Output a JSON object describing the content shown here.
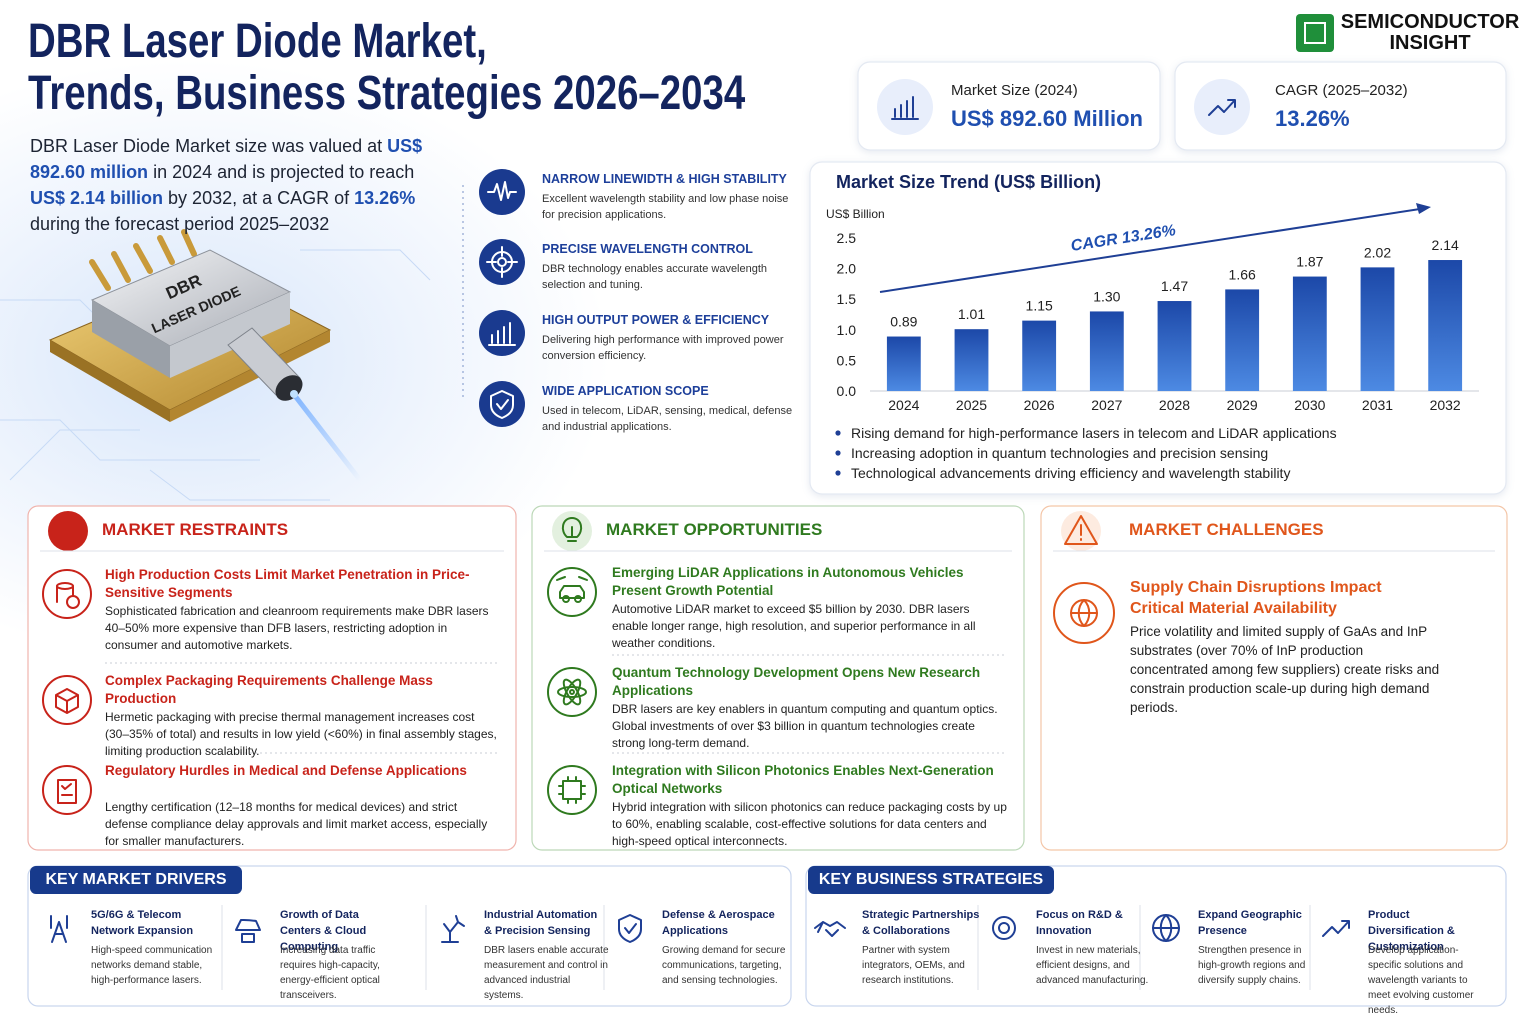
{
  "header": {
    "title_line1": "DBR Laser Diode Market,",
    "title_line2": "Trends, Business Strategies 2026–2034",
    "brand_line1": "SEMICONDUCTOR",
    "brand_line2": "INSIGHT"
  },
  "intro": [
    "DBR Laser Diode Market size was valued at ",
    "US$ 892.60 million",
    " in 2024 and is projected to reach ",
    "US$ 2.14 billion",
    " by 2032, at a CAGR of ",
    "13.26%",
    " during the forecast period 2025–2032"
  ],
  "device_label": [
    "DBR",
    "LASER DIODE"
  ],
  "features": [
    {
      "title": "NARROW LINEWIDTH & HIGH STABILITY",
      "text": "Excellent wavelength stability and low phase noise for precision applications."
    },
    {
      "title": "PRECISE WAVELENGTH CONTROL",
      "text": "DBR technology enables accurate wavelength selection and tuning."
    },
    {
      "title": "HIGH OUTPUT POWER & EFFICIENCY",
      "text": "Delivering high performance with improved power conversion efficiency."
    },
    {
      "title": "WIDE APPLICATION SCOPE",
      "text": "Used in telecom, LiDAR, sensing, medical, defense and industrial applications."
    }
  ],
  "kpis": [
    {
      "label": "Market Size (2024)",
      "value": "US$ 892.60 Million"
    },
    {
      "label": "CAGR (2025–2032)",
      "value": "13.26%"
    }
  ],
  "chart_data": {
    "type": "bar",
    "title": "Market Size Trend (US$ Billion)",
    "y_label": "US$ Billion",
    "categories": [
      "2024",
      "2025",
      "2026",
      "2027",
      "2028",
      "2029",
      "2030",
      "2031",
      "2032"
    ],
    "values": [
      0.89,
      1.01,
      1.15,
      1.3,
      1.47,
      1.66,
      1.87,
      2.02,
      2.14
    ],
    "value_labels": [
      "0.89",
      "1.01",
      "1.15",
      "1.30",
      "1.47",
      "1.66",
      "1.87",
      "2.02",
      "2.14"
    ],
    "color": "#1f4fb0",
    "ylim": [
      0,
      2.5
    ],
    "yticks": [
      {
        "value": 0,
        "label": "0.0"
      },
      0.5,
      {
        "value": 1,
        "label": "1.0"
      },
      1.5,
      {
        "value": 2,
        "label": "2.0"
      },
      2.5
    ],
    "grid": false,
    "annotation": "CAGR 13.26%"
  },
  "chart_bullets": [
    "Rising demand for high-performance lasers in telecom and LiDAR applications",
    "Increasing adoption in quantum technologies and precision sensing",
    "Technological advancements driving efficiency and wavelength stability"
  ],
  "restraints": {
    "title": "MARKET RESTRAINTS",
    "items": [
      {
        "title": "High Production Costs Limit Market Penetration in Price-Sensitive Segments",
        "text": "Sophisticated fabrication and cleanroom requirements make DBR lasers 40–50% more expensive than DFB lasers, restricting adoption in consumer and automotive markets."
      },
      {
        "title": "Complex Packaging Requirements Challenge Mass Production",
        "text": "Hermetic packaging with precise thermal management increases cost (30–35% of total) and results in low yield (<60%) in final assembly stages, limiting production scalability."
      },
      {
        "title": "Regulatory Hurdles in Medical and Defense Applications",
        "text": "Lengthy certification (12–18 months for medical devices) and strict defense compliance delay approvals and limit market access, especially for smaller manufacturers."
      }
    ]
  },
  "opportunities": {
    "title": "MARKET OPPORTUNITIES",
    "items": [
      {
        "title": "Emerging LiDAR Applications in Autonomous Vehicles Present Growth Potential",
        "text": "Automotive LiDAR market to exceed $5 billion by 2030. DBR lasers enable longer range, high resolution, and superior performance in all weather conditions."
      },
      {
        "title": "Quantum Technology Development Opens New Research Applications",
        "text": "DBR lasers are key enablers in quantum computing and quantum optics. Global investments of over $3 billion in quantum technologies create strong long-term demand."
      },
      {
        "title": "Integration with Silicon Photonics Enables Next-Generation Optical Networks",
        "text": "Hybrid integration with silicon photonics can reduce packaging costs by up to 60%, enabling scalable, cost-effective solutions for data centers and high-speed optical interconnects."
      }
    ]
  },
  "challenges": {
    "title": "MARKET CHALLENGES",
    "items": [
      {
        "title": "Supply Chain Disruptions Impact Critical Material Availability",
        "text": "Price volatility and limited supply of GaAs and InP substrates (over 70% of InP production concentrated among few suppliers) create risks and constrain production scale-up during high demand periods."
      }
    ]
  },
  "drivers": {
    "title": "KEY MARKET DRIVERS",
    "items": [
      {
        "title": "5G/6G & Telecom Network Expansion",
        "text": "High-speed communication networks demand stable, high-performance lasers."
      },
      {
        "title": "Growth of Data Centers & Cloud Computing",
        "text": "Increasing data traffic requires high-capacity, energy-efficient optical transceivers."
      },
      {
        "title": "Industrial Automation & Precision Sensing",
        "text": "DBR lasers enable accurate measurement and control in advanced industrial systems."
      },
      {
        "title": "Defense & Aerospace Applications",
        "text": "Growing demand for secure communications, targeting, and sensing technologies."
      }
    ]
  },
  "strategies": {
    "title": "KEY BUSINESS STRATEGIES",
    "items": [
      {
        "title": "Strategic Partnerships & Collaborations",
        "text": "Partner with system integrators, OEMs, and research institutions."
      },
      {
        "title": "Focus on R&D & Innovation",
        "text": "Invest in new materials, efficient designs, and advanced manufacturing."
      },
      {
        "title": "Expand Geographic Presence",
        "text": "Strengthen presence in high-growth regions and diversify supply chains."
      },
      {
        "title": "Product Diversification & Customization",
        "text": "Develop application-specific solutions and wavelength variants to meet evolving customer needs."
      }
    ]
  }
}
